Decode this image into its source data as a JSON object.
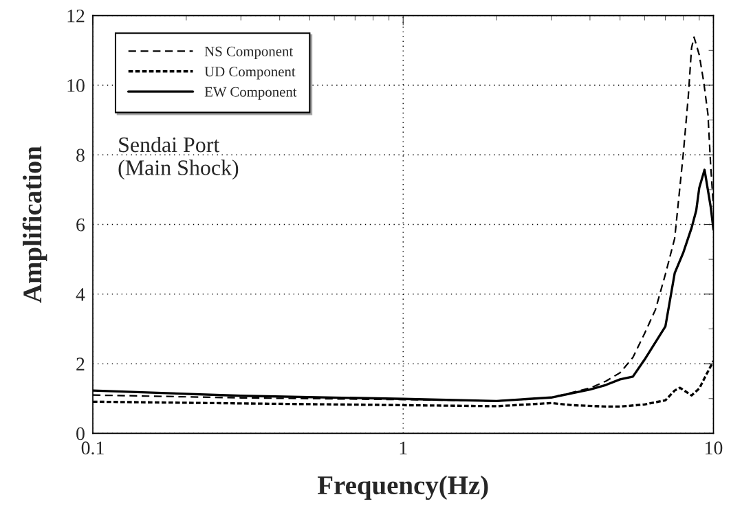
{
  "chart_data": {
    "type": "line",
    "xlabel": "Frequency(Hz)",
    "ylabel": "Amplification",
    "log": "x",
    "xlim": [
      0.1,
      10
    ],
    "xticks": [
      0.1,
      1,
      10
    ],
    "ylim": [
      0,
      12
    ],
    "yticks": [
      0,
      2,
      4,
      6,
      8,
      10,
      12
    ],
    "grid": true,
    "legend": "top left",
    "annotations": [
      "Sendai Port\n(Main Shock)"
    ],
    "series": [
      {
        "name": "NS Component",
        "color": "#000000",
        "line_style": "dashed",
        "x": [
          0.1,
          0.3,
          1,
          2,
          3,
          4,
          4.5,
          5,
          5.5,
          6,
          6.5,
          7,
          7.5,
          8,
          8.3,
          8.5,
          8.66,
          9,
          9.3,
          9.6,
          9.8,
          10
        ],
        "values": [
          1.1,
          1.02,
          0.97,
          0.93,
          1.03,
          1.3,
          1.5,
          1.74,
          2.18,
          2.87,
          3.55,
          4.57,
          5.6,
          8.06,
          9.7,
          11.07,
          11.38,
          10.87,
          10.1,
          9.16,
          7.66,
          6.5
        ]
      },
      {
        "name": "UD Component",
        "color": "#000000",
        "line_style": "dotted",
        "x": [
          0.1,
          0.3,
          1,
          2,
          3,
          3.5,
          4.5,
          5,
          6,
          7,
          7.5,
          7.8,
          8.5,
          9,
          9.5,
          10
        ],
        "values": [
          0.91,
          0.86,
          0.81,
          0.78,
          0.87,
          0.81,
          0.77,
          0.77,
          0.83,
          0.95,
          1.23,
          1.31,
          1.09,
          1.29,
          1.7,
          2.08
        ]
      },
      {
        "name": "EW Component",
        "color": "#000000",
        "line_style": "solid",
        "x": [
          0.1,
          0.3,
          1,
          2,
          3,
          4,
          4.5,
          5,
          5.5,
          6,
          7,
          7.5,
          8,
          8.5,
          8.8,
          9,
          9.36,
          9.8,
          10
        ],
        "values": [
          1.23,
          1.08,
          0.99,
          0.93,
          1.03,
          1.26,
          1.39,
          1.55,
          1.63,
          2.12,
          3.07,
          4.6,
          5.2,
          5.9,
          6.4,
          7.05,
          7.57,
          6.5,
          5.85
        ]
      }
    ]
  }
}
